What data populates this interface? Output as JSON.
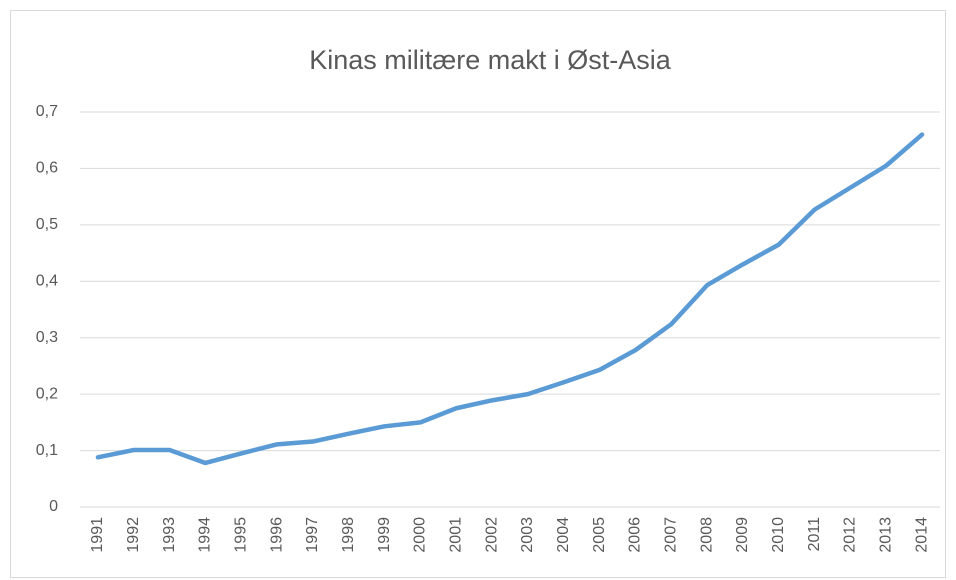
{
  "chart_data": {
    "type": "line",
    "title": "Kinas militære makt i Øst-Asia",
    "categories": [
      "1991",
      "1992",
      "1993",
      "1994",
      "1995",
      "1996",
      "1997",
      "1998",
      "1999",
      "2000",
      "2001",
      "2002",
      "2003",
      "2004",
      "2005",
      "2006",
      "2007",
      "2008",
      "2009",
      "2010",
      "2011",
      "2012",
      "2013",
      "2014"
    ],
    "series": [
      {
        "color": "#5b9bd5",
        "values": [
          0.088,
          0.101,
          0.101,
          0.078,
          0.095,
          0.111,
          0.116,
          0.13,
          0.143,
          0.15,
          0.175,
          0.189,
          0.2,
          0.221,
          0.243,
          0.278,
          0.324,
          0.393,
          0.43,
          0.465,
          0.527,
          0.566,
          0.605,
          0.66
        ]
      }
    ],
    "ylim": [
      0,
      0.7
    ],
    "yticks": [
      0,
      {
        "value": 0.1,
        "label": "0,1"
      },
      {
        "value": 0.2,
        "label": "0,2"
      },
      {
        "value": 0.3,
        "label": "0,3"
      },
      {
        "value": 0.4,
        "label": "0,4"
      },
      {
        "value": 0.5,
        "label": "0,5"
      },
      {
        "value": 0.6,
        "label": "0,6"
      },
      {
        "value": 0.7,
        "label": "0,7"
      }
    ],
    "grid": true
  }
}
